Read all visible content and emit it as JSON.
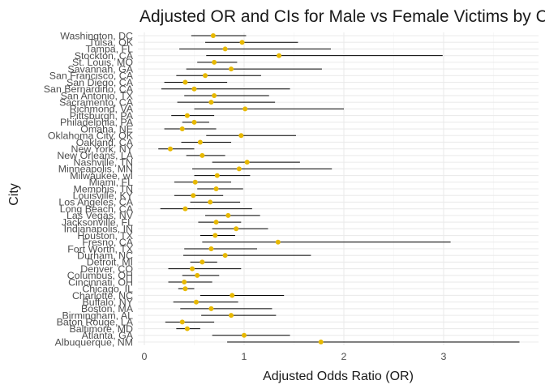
{
  "chart_data": {
    "type": "scatter",
    "title": "Adjusted OR and CIs for Male vs Female Victims by City",
    "xlabel": "Adjusted Odds Ratio (OR)",
    "ylabel": "City",
    "xlim": [
      0,
      3.8
    ],
    "x_ticks": [
      0,
      1,
      2,
      3
    ],
    "grid": true,
    "legend": "none",
    "point_color": "#E7B800",
    "errorbar_color": "#000000",
    "points": [
      {
        "city": "Washington, DC",
        "or": 0.69,
        "lower": 0.47,
        "upper": 1.02
      },
      {
        "city": "Tulsa, OK",
        "or": 0.98,
        "lower": 0.61,
        "upper": 1.54
      },
      {
        "city": "Tampa, FL",
        "or": 0.81,
        "lower": 0.35,
        "upper": 1.87
      },
      {
        "city": "Stockton, CA",
        "or": 1.35,
        "lower": 0.62,
        "upper": 2.99
      },
      {
        "city": "St. Louis, MO",
        "or": 0.7,
        "lower": 0.53,
        "upper": 0.93
      },
      {
        "city": "Savannah, GA",
        "or": 0.87,
        "lower": 0.42,
        "upper": 1.78
      },
      {
        "city": "San Francisco, CA",
        "or": 0.61,
        "lower": 0.32,
        "upper": 1.17
      },
      {
        "city": "San Diego, CA",
        "or": 0.41,
        "lower": 0.2,
        "upper": 0.83
      },
      {
        "city": "San Bernardino, CA",
        "or": 0.5,
        "lower": 0.17,
        "upper": 1.46
      },
      {
        "city": "San Antonio, TX",
        "or": 0.7,
        "lower": 0.4,
        "upper": 1.25
      },
      {
        "city": "Sacramento, CA",
        "or": 0.67,
        "lower": 0.33,
        "upper": 1.31
      },
      {
        "city": "Richmond, VA",
        "or": 1.01,
        "lower": 0.5,
        "upper": 2.0
      },
      {
        "city": "Pittsburgh, PA",
        "or": 0.43,
        "lower": 0.27,
        "upper": 0.7
      },
      {
        "city": "Philadelphia, PA",
        "or": 0.5,
        "lower": 0.38,
        "upper": 0.65
      },
      {
        "city": "Omaha, NE",
        "or": 0.38,
        "lower": 0.2,
        "upper": 0.72
      },
      {
        "city": "Oklahoma City, OK",
        "or": 0.97,
        "lower": 0.62,
        "upper": 1.52
      },
      {
        "city": "Oakland, CA",
        "or": 0.56,
        "lower": 0.37,
        "upper": 0.87
      },
      {
        "city": "New York, NY",
        "or": 0.26,
        "lower": 0.14,
        "upper": 0.5
      },
      {
        "city": "New Orleans, LA",
        "or": 0.58,
        "lower": 0.42,
        "upper": 0.81
      },
      {
        "city": "Nashville, TN",
        "or": 1.03,
        "lower": 0.68,
        "upper": 1.56
      },
      {
        "city": "Minneapolis, MN",
        "or": 0.95,
        "lower": 0.48,
        "upper": 1.88
      },
      {
        "city": "Milwaukee, wI",
        "or": 0.73,
        "lower": 0.5,
        "upper": 1.06
      },
      {
        "city": "Miami, FL",
        "or": 0.51,
        "lower": 0.3,
        "upper": 0.87
      },
      {
        "city": "Memphis, TN",
        "or": 0.72,
        "lower": 0.53,
        "upper": 0.99
      },
      {
        "city": "Louisville, KY",
        "or": 0.49,
        "lower": 0.3,
        "upper": 0.79
      },
      {
        "city": "Los Angeles, CA",
        "or": 0.66,
        "lower": 0.46,
        "upper": 0.96
      },
      {
        "city": "Long Beach, CA",
        "or": 0.41,
        "lower": 0.16,
        "upper": 1.08
      },
      {
        "city": "Las Vegas, NV",
        "or": 0.84,
        "lower": 0.61,
        "upper": 1.16
      },
      {
        "city": "Jacksonville, FL",
        "or": 0.72,
        "lower": 0.54,
        "upper": 0.97
      },
      {
        "city": "Indianapolis, IN",
        "or": 0.92,
        "lower": 0.68,
        "upper": 1.24
      },
      {
        "city": "Houston, TX",
        "or": 0.71,
        "lower": 0.56,
        "upper": 0.91
      },
      {
        "city": "Fresno, CA",
        "or": 1.34,
        "lower": 0.58,
        "upper": 3.07
      },
      {
        "city": "Fort Worth, TX",
        "or": 0.67,
        "lower": 0.4,
        "upper": 1.13
      },
      {
        "city": "Durham, NC",
        "or": 0.81,
        "lower": 0.39,
        "upper": 1.67
      },
      {
        "city": "Detroit, MI",
        "or": 0.58,
        "lower": 0.46,
        "upper": 0.73
      },
      {
        "city": "Denver, CO",
        "or": 0.48,
        "lower": 0.24,
        "upper": 0.97
      },
      {
        "city": "Columbus, OH",
        "or": 0.53,
        "lower": 0.38,
        "upper": 0.75
      },
      {
        "city": "Cincinnati, OH",
        "or": 0.4,
        "lower": 0.24,
        "upper": 0.68
      },
      {
        "city": "Chicago, IL",
        "or": 0.41,
        "lower": 0.34,
        "upper": 0.5
      },
      {
        "city": "Charlotte, NC",
        "or": 0.88,
        "lower": 0.56,
        "upper": 1.4
      },
      {
        "city": "Buffalo, NY",
        "or": 0.52,
        "lower": 0.29,
        "upper": 0.94
      },
      {
        "city": "Boston, MA",
        "or": 0.67,
        "lower": 0.36,
        "upper": 1.28
      },
      {
        "city": "Birmingham, AL",
        "or": 0.87,
        "lower": 0.57,
        "upper": 1.32
      },
      {
        "city": "Baton Rouge, LA",
        "or": 0.38,
        "lower": 0.21,
        "upper": 0.7
      },
      {
        "city": "Baltimore, MD",
        "or": 0.43,
        "lower": 0.32,
        "upper": 0.56
      },
      {
        "city": "Atlanta, GA",
        "or": 1.0,
        "lower": 0.68,
        "upper": 1.46
      },
      {
        "city": "Albuquerque, NM",
        "or": 1.77,
        "lower": 0.83,
        "upper": 3.76
      }
    ]
  }
}
